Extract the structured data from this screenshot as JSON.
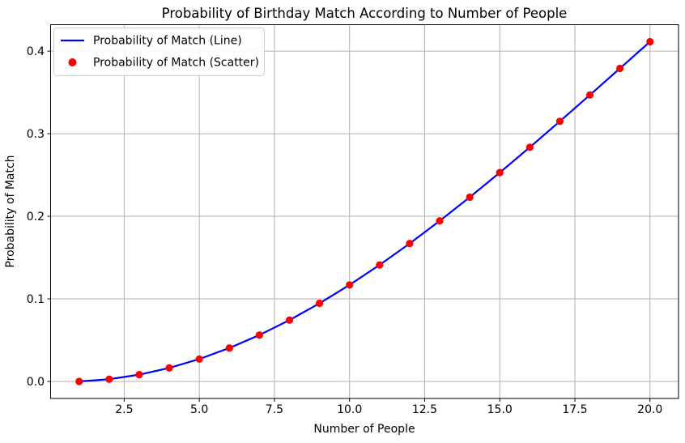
{
  "figure": {
    "background": "#ffffff"
  },
  "chart_data": {
    "type": "line",
    "title": "Probability of Birthday Match According to Number of People",
    "xlabel": "Number of People",
    "ylabel": "Probability of Match",
    "x": [
      1,
      2,
      3,
      4,
      5,
      6,
      7,
      8,
      9,
      10,
      11,
      12,
      13,
      14,
      15,
      16,
      17,
      18,
      19,
      20
    ],
    "series": [
      {
        "name": "Probability of Match (Line)",
        "type": "line",
        "color": "#0000ff",
        "line_width": 2.2,
        "values": [
          0.0,
          0.0027,
          0.0082,
          0.0164,
          0.0271,
          0.0405,
          0.0562,
          0.0743,
          0.0946,
          0.1169,
          0.1411,
          0.167,
          0.1944,
          0.2231,
          0.2529,
          0.2836,
          0.315,
          0.3469,
          0.3791,
          0.4114
        ]
      },
      {
        "name": "Probability of Match (Scatter)",
        "type": "scatter",
        "color": "#ff0000",
        "marker_radius": 4.6,
        "values": [
          0.0,
          0.0027,
          0.0082,
          0.0164,
          0.0271,
          0.0405,
          0.0562,
          0.0743,
          0.0946,
          0.1169,
          0.1411,
          0.167,
          0.1944,
          0.2231,
          0.2529,
          0.2836,
          0.315,
          0.3469,
          0.3791,
          0.4114
        ]
      }
    ],
    "xlim": [
      0.05,
      20.95
    ],
    "ylim": [
      -0.0206,
      0.432
    ],
    "xticks": [
      2.5,
      5.0,
      7.5,
      10.0,
      12.5,
      15.0,
      17.5,
      20.0
    ],
    "xtick_labels": [
      "2.5",
      "5.0",
      "7.5",
      "10.0",
      "12.5",
      "15.0",
      "17.5",
      "20.0"
    ],
    "yticks": [
      0.0,
      0.1,
      0.2,
      0.3,
      0.4
    ],
    "ytick_labels": [
      "0.0",
      "0.1",
      "0.2",
      "0.3",
      "0.4"
    ],
    "grid": true,
    "grid_color": "#b0b0b0",
    "axis_color": "#000000",
    "legend_position": "upper left"
  }
}
